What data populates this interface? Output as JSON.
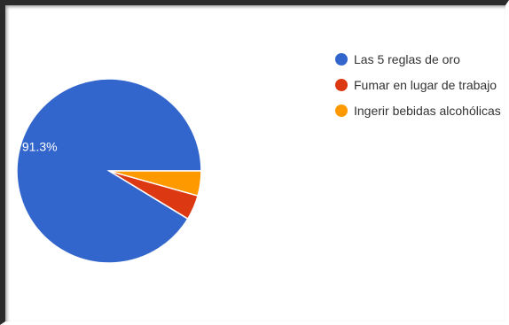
{
  "chart_data": {
    "type": "pie",
    "title": "",
    "categories": [
      "Las 5 reglas de oro",
      "Fumar en lugar de trabajo",
      "Ingerir bebidas alcohólicas"
    ],
    "values": [
      91.3,
      4.35,
      4.35
    ],
    "colors": [
      "#3366cc",
      "#dc3912",
      "#ff9900"
    ],
    "data_labels": [
      "91.3%",
      "",
      ""
    ],
    "start_angle_deg": 0,
    "direction": "counterclockwise",
    "legend_position": "right"
  }
}
